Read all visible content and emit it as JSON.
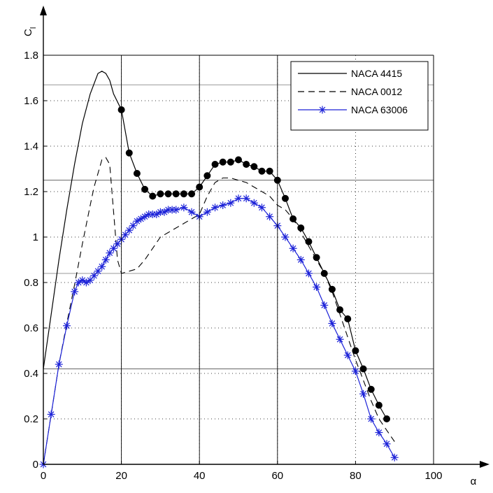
{
  "chart_data": {
    "type": "line",
    "title": "",
    "xlabel": "α",
    "ylabel": "C_l",
    "ylabel_main": "C",
    "ylabel_sub": "l",
    "xlim": [
      0,
      100
    ],
    "ylim": [
      0,
      1.8
    ],
    "x_ticks": [
      0,
      20,
      40,
      60,
      80,
      100
    ],
    "x_tick_labels": [
      "0",
      "20",
      "40",
      "60",
      "80",
      "100"
    ],
    "y_ticks": [
      0,
      0.2,
      0.4,
      0.6,
      0.8,
      1.0,
      1.2,
      1.4,
      1.6,
      1.8
    ],
    "y_tick_labels": [
      "0",
      "0.2",
      "0.4",
      "0.6",
      "0.8",
      "1",
      "1.2",
      "1.4",
      "1.6",
      "1.8"
    ],
    "grid": "dotted",
    "legend_position": "top-right",
    "reference_lines_y": [
      1.67,
      1.25,
      0.84,
      0.42
    ],
    "series": [
      {
        "name": "NACA 4415",
        "line_style": "solid",
        "color": "#000000",
        "marker": "circle",
        "x": [
          0,
          2,
          4,
          6,
          8,
          10,
          12,
          14,
          15,
          16,
          17,
          18,
          20,
          22,
          24,
          26,
          28,
          30,
          32,
          34,
          36,
          38,
          40,
          42,
          44,
          46,
          48,
          50,
          52,
          54,
          56,
          58,
          60,
          62,
          64,
          66,
          68,
          70,
          72,
          74,
          76,
          78,
          80,
          82,
          84,
          86,
          88
        ],
        "y": [
          0.42,
          0.66,
          0.9,
          1.12,
          1.32,
          1.5,
          1.63,
          1.72,
          1.73,
          1.72,
          1.69,
          1.63,
          1.56,
          1.37,
          1.28,
          1.21,
          1.18,
          1.19,
          1.19,
          1.19,
          1.19,
          1.19,
          1.22,
          1.27,
          1.32,
          1.33,
          1.33,
          1.34,
          1.32,
          1.31,
          1.29,
          1.29,
          1.25,
          1.17,
          1.08,
          1.04,
          0.98,
          0.91,
          0.84,
          0.77,
          0.68,
          0.64,
          0.5,
          0.42,
          0.33,
          0.26,
          0.2
        ],
        "marked_x": [
          20,
          22,
          24,
          26,
          28,
          30,
          32,
          34,
          36,
          38,
          40,
          42,
          44,
          46,
          48,
          50,
          52,
          54,
          56,
          58,
          60,
          62,
          64,
          66,
          68,
          70,
          72,
          74,
          76,
          78,
          80,
          82,
          84,
          86,
          88
        ]
      },
      {
        "name": "NACA 0012",
        "line_style": "dashed",
        "color": "#000000",
        "marker": "none",
        "x": [
          0,
          2,
          4,
          6,
          8,
          10,
          12,
          13,
          14,
          15,
          16,
          17,
          19,
          20,
          22,
          24,
          26,
          28,
          30,
          32,
          34,
          36,
          38,
          40,
          42,
          44,
          46,
          48,
          50,
          52,
          54,
          56,
          58,
          60,
          62,
          64,
          66,
          68,
          70,
          72,
          74,
          76,
          78,
          80,
          82,
          84,
          86,
          88,
          90
        ],
        "y": [
          0.0,
          0.22,
          0.44,
          0.62,
          0.79,
          0.97,
          1.14,
          1.22,
          1.28,
          1.34,
          1.35,
          1.32,
          0.9,
          0.84,
          0.85,
          0.86,
          0.9,
          0.95,
          1.0,
          1.02,
          1.04,
          1.06,
          1.08,
          1.1,
          1.18,
          1.24,
          1.26,
          1.26,
          1.25,
          1.24,
          1.22,
          1.2,
          1.18,
          1.14,
          1.12,
          1.08,
          1.02,
          0.96,
          0.9,
          0.84,
          0.76,
          0.66,
          0.56,
          0.46,
          0.37,
          0.28,
          0.2,
          0.15,
          0.1
        ]
      },
      {
        "name": "NACA 63006",
        "line_style": "solid",
        "color": "#1c22d8",
        "marker": "asterisk",
        "x": [
          0,
          2,
          4,
          6,
          8,
          9,
          10,
          11,
          12,
          13,
          14,
          15,
          16,
          17,
          18,
          19,
          20,
          21,
          22,
          23,
          24,
          25,
          26,
          27,
          28,
          29,
          30,
          31,
          32,
          33,
          34,
          36,
          38,
          40,
          42,
          44,
          46,
          48,
          50,
          52,
          54,
          56,
          58,
          60,
          62,
          64,
          66,
          68,
          70,
          72,
          74,
          76,
          78,
          80,
          82,
          84,
          86,
          88,
          90
        ],
        "y": [
          0.0,
          0.22,
          0.44,
          0.61,
          0.76,
          0.8,
          0.81,
          0.8,
          0.81,
          0.83,
          0.85,
          0.87,
          0.9,
          0.93,
          0.95,
          0.97,
          0.99,
          1.01,
          1.03,
          1.05,
          1.07,
          1.08,
          1.09,
          1.1,
          1.1,
          1.1,
          1.11,
          1.11,
          1.12,
          1.12,
          1.12,
          1.13,
          1.11,
          1.09,
          1.11,
          1.13,
          1.14,
          1.15,
          1.17,
          1.17,
          1.15,
          1.13,
          1.09,
          1.05,
          1.0,
          0.95,
          0.9,
          0.84,
          0.78,
          0.7,
          0.62,
          0.55,
          0.48,
          0.41,
          0.31,
          0.2,
          0.14,
          0.09,
          0.03
        ]
      }
    ]
  }
}
